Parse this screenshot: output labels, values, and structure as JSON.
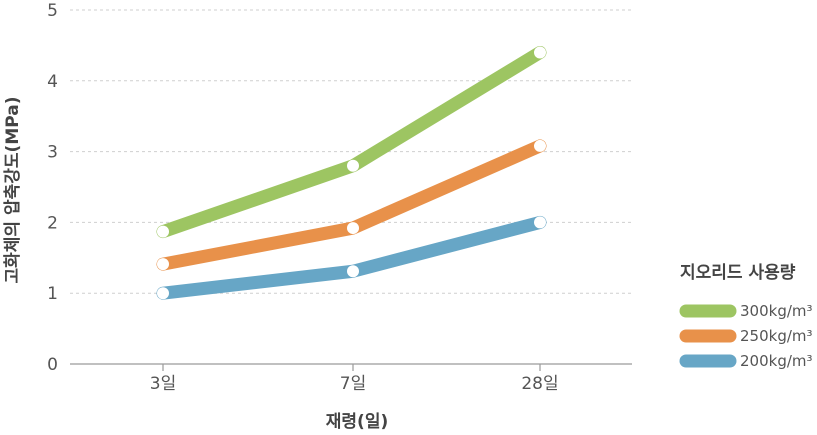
{
  "chart_data": {
    "type": "line",
    "categories": [
      "3일",
      "7일",
      "28일"
    ],
    "ylim": [
      0,
      5
    ],
    "yticks": [
      0,
      1,
      2,
      3,
      4,
      5
    ],
    "xlabel": "재령(일)",
    "ylabel": "고화체의 압축강도(MPa)",
    "grid": true,
    "legend_title": "지오리드 사용량",
    "legend_position": "right",
    "series": [
      {
        "name": "300kg/m³",
        "color": "#9dc562",
        "values": [
          1.87,
          2.8,
          4.4
        ]
      },
      {
        "name": "250kg/m³",
        "color": "#e8914a",
        "values": [
          1.41,
          1.92,
          3.08
        ]
      },
      {
        "name": "200kg/m³",
        "color": "#67a6c6",
        "values": [
          1.0,
          1.31,
          2.0
        ]
      }
    ]
  }
}
